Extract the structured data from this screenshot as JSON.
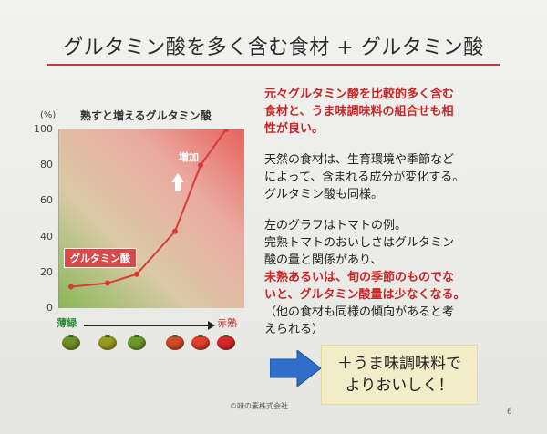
{
  "title": "グルタミン酸を多く含む食材 + グルタミン酸",
  "chart_data": {
    "type": "line",
    "title": "熟すと増えるグルタミン酸",
    "ylabel": "(%)",
    "xlabel": "",
    "ylim": [
      0,
      100
    ],
    "yticks": [
      "100",
      "80",
      "60",
      "40",
      "20",
      "0"
    ],
    "x": [
      1,
      2,
      3,
      4,
      5,
      6
    ],
    "series": [
      {
        "name": "グルタミン酸",
        "values": [
          12,
          14,
          19,
          43,
          80,
          100
        ]
      }
    ],
    "annotation": "増加",
    "x_start_label": "薄緑",
    "x_end_label": "赤熟",
    "tomato_colors": [
      "#6f8f2a",
      "#9a9a20",
      "#6d9a2a",
      "#d24a2a",
      "#e0402a",
      "#d8262a"
    ],
    "line_color": "#d83a3a",
    "grid": false
  },
  "text": {
    "red_heading_lines": [
      "元々グルタミン酸を比較的多く含む",
      "食材と、うま味調味料の組合せも相",
      "性が良い。"
    ],
    "para1_lines": [
      "天然の食材は、生育環境や季節など",
      "によって、含まれる成分が変化する。",
      "グルタミン酸も同様。"
    ],
    "para2_lines": [
      "左のグラフはトマトの例。",
      "完熟トマトのおいしさはグルタミン",
      "酸の量と関係があり、"
    ],
    "para2_red_lines": [
      "未熟あるいは、旬の季節のものでな",
      "いと、グルタミン酸量は少なくなる。"
    ],
    "para2_tail_lines": [
      "（他の食材も同様の傾向があると考",
      "えられる）"
    ]
  },
  "callout": {
    "lines": [
      "＋うま味調味料で",
      "よりおいしく！"
    ]
  },
  "copyright": "©味の素株式会社",
  "page_number": "6"
}
